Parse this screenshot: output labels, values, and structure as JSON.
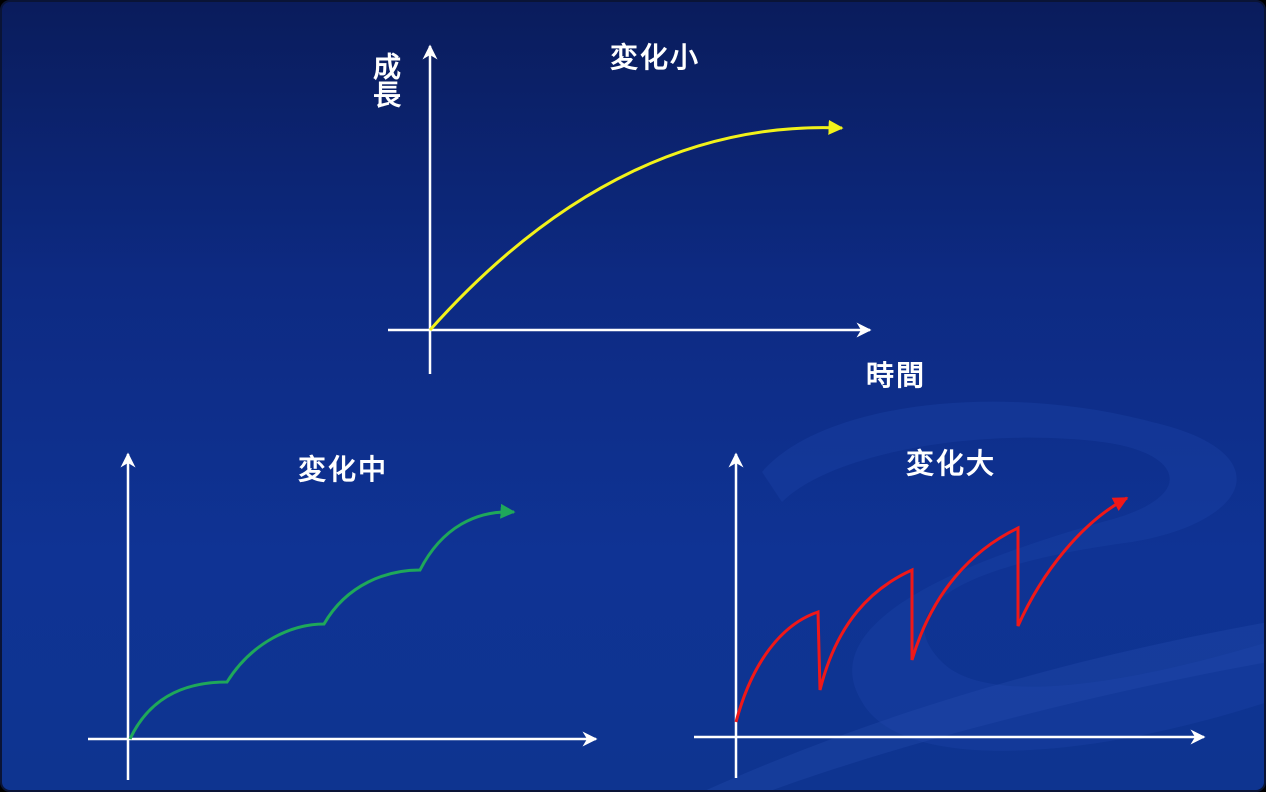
{
  "panels": {
    "small": {
      "title": "変化小",
      "y_axis_label": "成長",
      "x_axis_label": "時間",
      "curve_color": "#f2f21a"
    },
    "medium": {
      "title": "変化中",
      "curve_color": "#1fa85a"
    },
    "large": {
      "title": "変化大",
      "curve_color": "#f01818"
    }
  },
  "axis_color": "#ffffff"
}
